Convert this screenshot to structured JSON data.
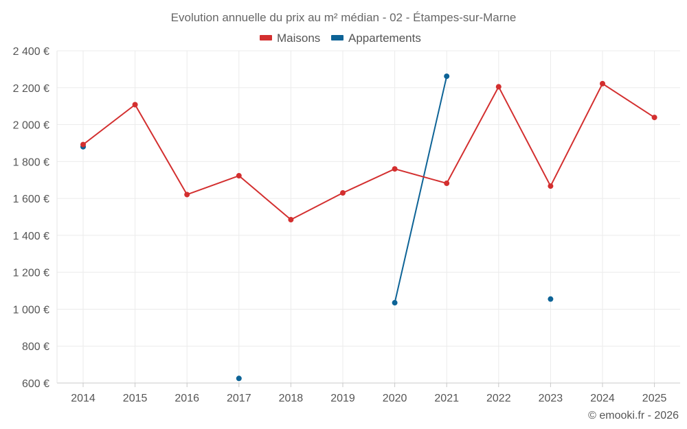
{
  "chart_data": {
    "type": "line",
    "title": "Evolution annuelle du prix au m² médian - 02 - Étampes-sur-Marne",
    "categories": [
      "2014",
      "2015",
      "2016",
      "2017",
      "2018",
      "2019",
      "2020",
      "2021",
      "2022",
      "2023",
      "2024",
      "2025"
    ],
    "y_ticks": [
      600,
      800,
      1000,
      1200,
      1400,
      1600,
      1800,
      2000,
      2200,
      2400
    ],
    "y_tick_labels": [
      "600 €",
      "800 €",
      "1 000 €",
      "1 200 €",
      "1 400 €",
      "1 600 €",
      "1 800 €",
      "2 000 €",
      "2 200 €",
      "2 400 €"
    ],
    "ylim": [
      600,
      2400
    ],
    "xlabel": "",
    "ylabel": "",
    "grid": true,
    "legend_position": "top-center",
    "series": [
      {
        "name": "Maisons",
        "color": "#d32f2f",
        "values": [
          1892,
          2108,
          1621,
          1723,
          1485,
          1630,
          1760,
          1682,
          2205,
          1667,
          2222,
          2039
        ]
      },
      {
        "name": "Appartements",
        "color": "#0d6396",
        "values": [
          1880,
          null,
          null,
          625,
          null,
          null,
          1035,
          2262,
          null,
          1055,
          null,
          null
        ]
      }
    ],
    "credit": "© emooki.fr - 2026"
  }
}
